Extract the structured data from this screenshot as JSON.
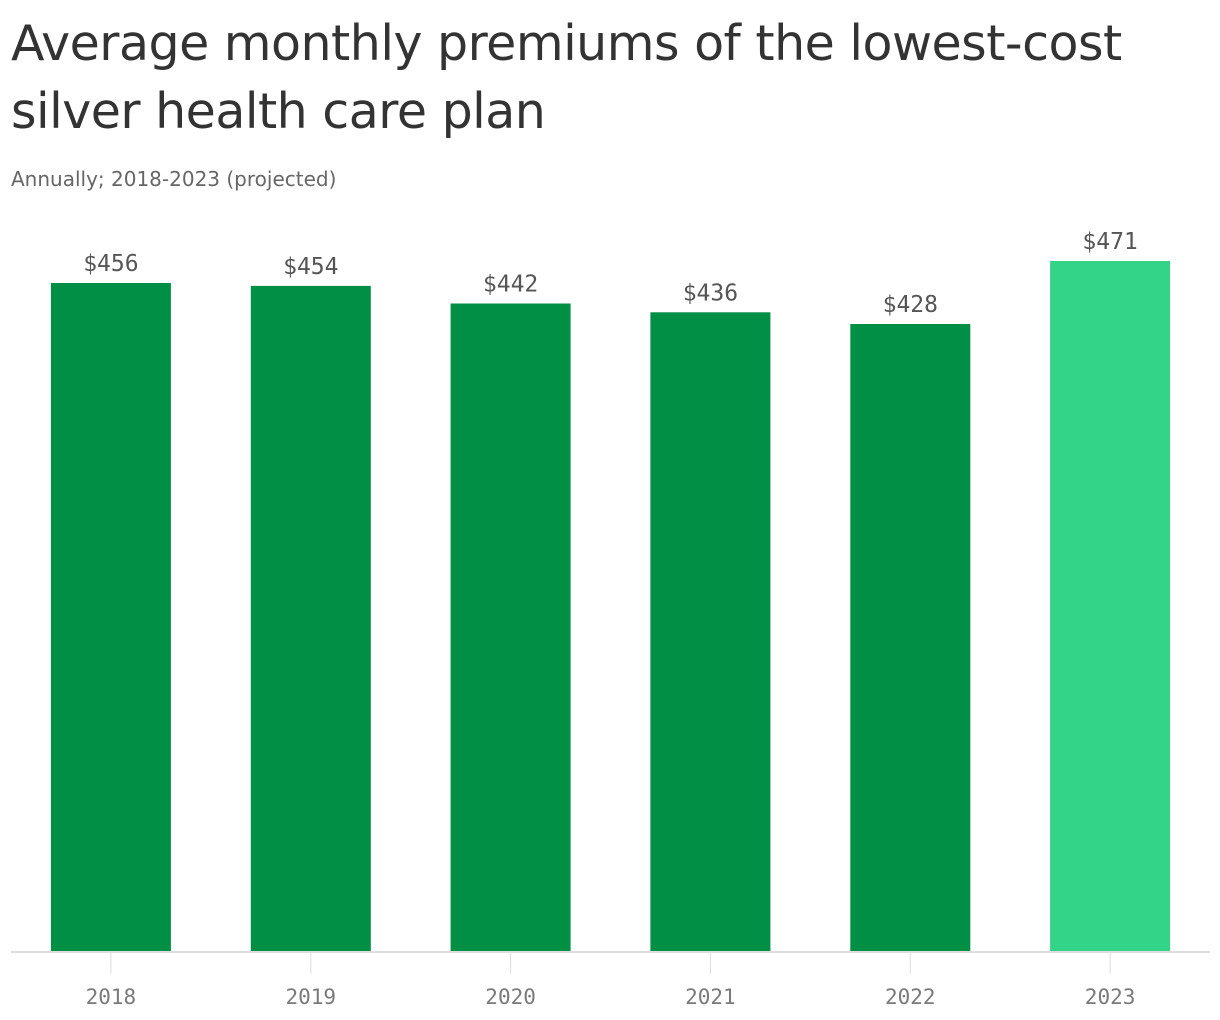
{
  "header": {
    "title": "Average monthly premiums of the lowest-cost silver health care plan",
    "subtitle": "Annually; 2018-2023 (projected)"
  },
  "colors": {
    "bar": "#008F45",
    "bar_projected": "#33D487",
    "axis": "#dddddd"
  },
  "chart_data": {
    "type": "bar",
    "title": "Average monthly premiums of the lowest-cost silver health care plan",
    "subtitle": "Annually; 2018-2023 (projected)",
    "categories": [
      "2018",
      "2019",
      "2020",
      "2021",
      "2022",
      "2023"
    ],
    "values": [
      456,
      454,
      442,
      436,
      428,
      471
    ],
    "value_labels": [
      "$456",
      "$454",
      "$442",
      "$436",
      "$428",
      "$471"
    ],
    "projected": [
      false,
      false,
      false,
      false,
      false,
      true
    ],
    "xlabel": "",
    "ylabel": "",
    "ylim": [
      0,
      471
    ],
    "grid": false,
    "legend": "none"
  }
}
